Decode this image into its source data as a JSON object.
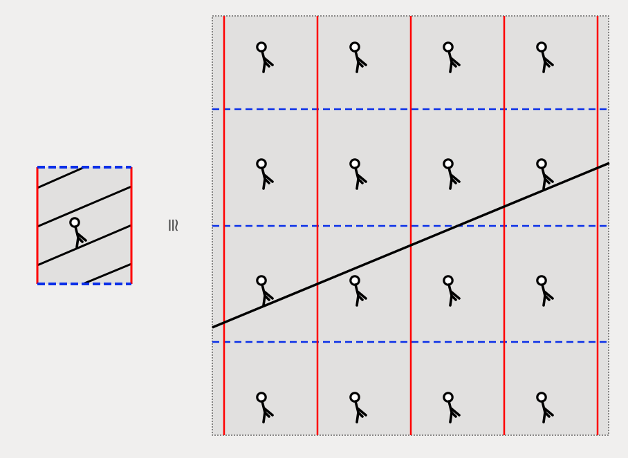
{
  "colors": {
    "background": "#f0efee",
    "cell_fill": "#e1e0df",
    "vertical_edge": "#ff0000",
    "horizontal_edge": "#0a2fe8",
    "line": "#000000",
    "border": "#222222"
  },
  "relation_symbol": "≅",
  "tile": {
    "figure_icon": "stick-figure-icon"
  },
  "grid": {
    "columns": 4,
    "rows": 4,
    "figure_icon": "stick-figure-icon"
  }
}
